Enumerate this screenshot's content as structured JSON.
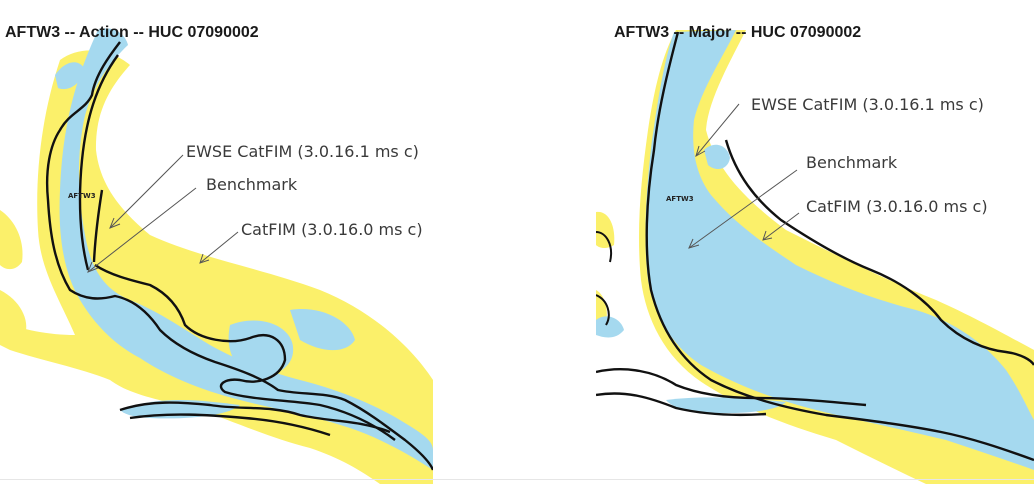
{
  "colors": {
    "catfim_fill": "#fbf06a",
    "ewse_fill": "#a5d9ef",
    "benchmark_line": "#111111",
    "leader_line": "#555555",
    "background": "#ffffff"
  },
  "panels": [
    {
      "title": "AFTW3 -- Action -- HUC 07090002",
      "gauge_label": "AFTW3",
      "legend": {
        "ewse": "EWSE CatFIM (3.0.16.1 ms c)",
        "benchmark": "Benchmark",
        "catfim": "CatFIM (3.0.16.0 ms c)"
      }
    },
    {
      "title": "AFTW3 -- Major -- HUC 07090002",
      "gauge_label": "AFTW3",
      "legend": {
        "ewse": "EWSE CatFIM (3.0.16.1 ms c)",
        "benchmark": "Benchmark",
        "catfim": "CatFIM (3.0.16.0 ms c)"
      }
    }
  ]
}
